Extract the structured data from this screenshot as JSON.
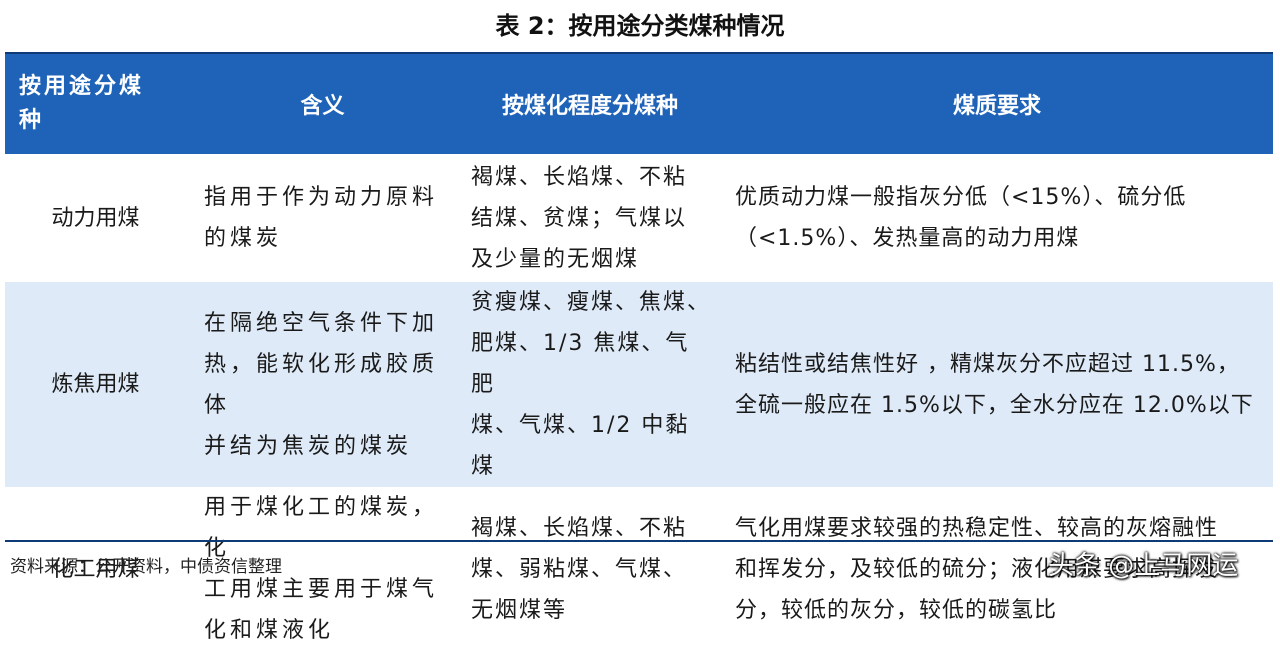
{
  "title": "表 2：按用途分类煤种情况",
  "table": {
    "headers": [
      "按用途分煤种",
      "含义",
      "按煤化程度分煤种",
      "煤质要求"
    ],
    "header_first_lines": [
      "按用途分煤",
      "种"
    ],
    "rows": [
      {
        "name": "动力用煤",
        "meaning": [
          "指用于作为动力原料",
          "的煤炭"
        ],
        "kind": [
          "褐煤、长焰煤、不粘",
          "结煤、贫煤；气煤以",
          "及少量的无烟煤"
        ],
        "requirement": [
          "优质动力煤一般指灰分低（<15%）、硫分低",
          "（<1.5%）、发热量高的动力用煤"
        ]
      },
      {
        "name": "炼焦用煤",
        "meaning": [
          "在隔绝空气条件下加",
          "热，能软化形成胶质体",
          "并结为焦炭的煤炭"
        ],
        "kind": [
          "贫瘦煤、瘦煤、焦煤、",
          "肥煤、1/3 焦煤、气肥",
          "煤、气煤、1/2 中黏煤"
        ],
        "requirement": [
          "粘结性或结焦性好 ，精煤灰分不应超过 11.5%，",
          "全硫一般应在 1.5%以下，全水分应在 12.0%以下"
        ]
      },
      {
        "name": "化工用煤",
        "meaning": [
          "用于煤化工的煤炭，化",
          "工用煤主要用于煤气",
          "化和煤液化"
        ],
        "kind": [
          "褐煤、长焰煤、不粘",
          "煤、弱粘煤、气煤、",
          "无烟煤等"
        ],
        "requirement": [
          "气化用煤要求较强的热稳定性、较高的灰熔融性",
          "和挥发分，及较低的硫分；液化用煤要求高挥发",
          "分，较低的灰分，较低的碳氢比"
        ]
      }
    ]
  },
  "source": "资料来源：公开资料，中债资信整理",
  "watermark": "头条 @上马网运",
  "colors": {
    "header_bg": "#1f63b8",
    "alt_row_bg": "#deeaf7",
    "rule": "#0f3a78"
  }
}
